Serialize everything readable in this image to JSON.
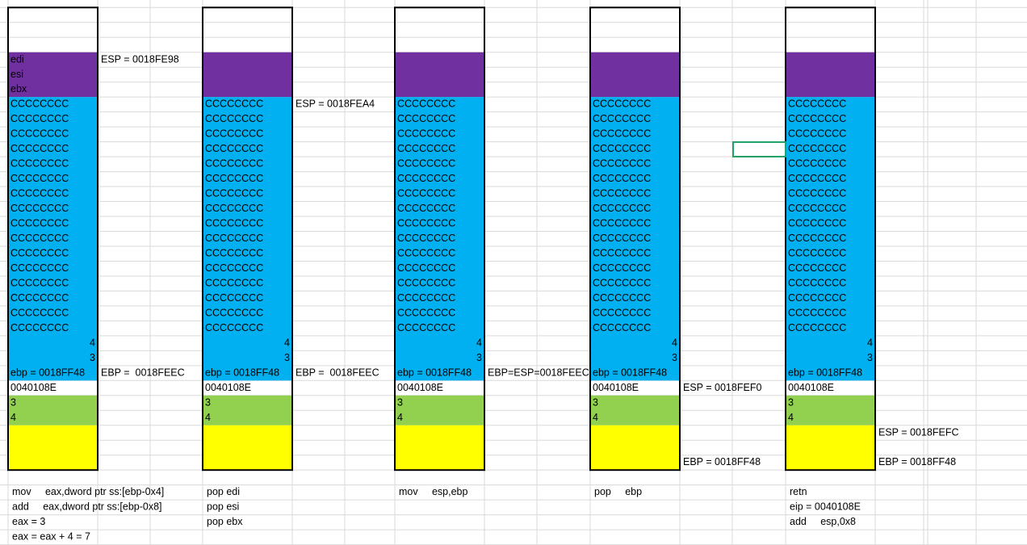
{
  "stacks": [
    {
      "registers": [
        "edi",
        "esi",
        "ebx"
      ],
      "locals": [
        "CCCCCCCC",
        "CCCCCCCC",
        "CCCCCCCC",
        "CCCCCCCC",
        "CCCCCCCC",
        "CCCCCCCC",
        "CCCCCCCC",
        "CCCCCCCC",
        "CCCCCCCC",
        "CCCCCCCC",
        "CCCCCCCC",
        "CCCCCCCC",
        "CCCCCCCC",
        "CCCCCCCC",
        "CCCCCCCC",
        "CCCCCCCC"
      ],
      "frame_values": [
        "4",
        "3"
      ],
      "saved_ebp": "ebp = 0018FF48",
      "return_address": "0040108E",
      "arguments": [
        "3",
        "4"
      ],
      "notes": [
        "ESP = 0018FE98",
        "EBP =  0018FEEC"
      ],
      "instructions": [
        "mov     eax,dword ptr ss:[ebp-0x4]",
        "add     eax,dword ptr ss:[ebp-0x8]",
        "eax = 3",
        "eax = eax + 4 = 7"
      ]
    },
    {
      "locals": [
        "CCCCCCCC",
        "CCCCCCCC",
        "CCCCCCCC",
        "CCCCCCCC",
        "CCCCCCCC",
        "CCCCCCCC",
        "CCCCCCCC",
        "CCCCCCCC",
        "CCCCCCCC",
        "CCCCCCCC",
        "CCCCCCCC",
        "CCCCCCCC",
        "CCCCCCCC",
        "CCCCCCCC",
        "CCCCCCCC",
        "CCCCCCCC"
      ],
      "frame_values": [
        "4",
        "3"
      ],
      "saved_ebp": "ebp = 0018FF48",
      "return_address": "0040108E",
      "arguments": [
        "3",
        "4"
      ],
      "notes": [
        "ESP = 0018FEA4",
        "EBP =  0018FEEC"
      ],
      "instructions": [
        "pop edi",
        "pop esi",
        "pop ebx"
      ]
    },
    {
      "locals": [
        "CCCCCCCC",
        "CCCCCCCC",
        "CCCCCCCC",
        "CCCCCCCC",
        "CCCCCCCC",
        "CCCCCCCC",
        "CCCCCCCC",
        "CCCCCCCC",
        "CCCCCCCC",
        "CCCCCCCC",
        "CCCCCCCC",
        "CCCCCCCC",
        "CCCCCCCC",
        "CCCCCCCC",
        "CCCCCCCC",
        "CCCCCCCC"
      ],
      "frame_values": [
        "4",
        "3"
      ],
      "saved_ebp": "ebp = 0018FF48",
      "return_address": "0040108E",
      "arguments": [
        "3",
        "4"
      ],
      "notes": [
        "EBP=ESP=0018FEEC"
      ],
      "instructions": [
        "mov     esp,ebp"
      ]
    },
    {
      "locals": [
        "CCCCCCCC",
        "CCCCCCCC",
        "CCCCCCCC",
        "CCCCCCCC",
        "CCCCCCCC",
        "CCCCCCCC",
        "CCCCCCCC",
        "CCCCCCCC",
        "CCCCCCCC",
        "CCCCCCCC",
        "CCCCCCCC",
        "CCCCCCCC",
        "CCCCCCCC",
        "CCCCCCCC",
        "CCCCCCCC",
        "CCCCCCCC"
      ],
      "frame_values": [
        "4",
        "3"
      ],
      "saved_ebp": "ebp = 0018FF48",
      "return_address": "0040108E",
      "arguments": [
        "3",
        "4"
      ],
      "notes": [
        "ESP = 0018FEF0",
        "EBP = 0018FF48"
      ],
      "instructions": [
        "pop     ebp"
      ]
    },
    {
      "locals": [
        "CCCCCCCC",
        "CCCCCCCC",
        "CCCCCCCC",
        "CCCCCCCC",
        "CCCCCCCC",
        "CCCCCCCC",
        "CCCCCCCC",
        "CCCCCCCC",
        "CCCCCCCC",
        "CCCCCCCC",
        "CCCCCCCC",
        "CCCCCCCC",
        "CCCCCCCC",
        "CCCCCCCC",
        "CCCCCCCC",
        "CCCCCCCC"
      ],
      "frame_values": [
        "4",
        "3"
      ],
      "saved_ebp": "ebp = 0018FF48",
      "return_address": "0040108E",
      "arguments": [
        "3",
        "4"
      ],
      "notes": [
        "ESP = 0018FEFC",
        "EBP = 0018FF48"
      ],
      "instructions": [
        "retn",
        "eip = 0040108E",
        "add     esp,0x8"
      ]
    }
  ]
}
